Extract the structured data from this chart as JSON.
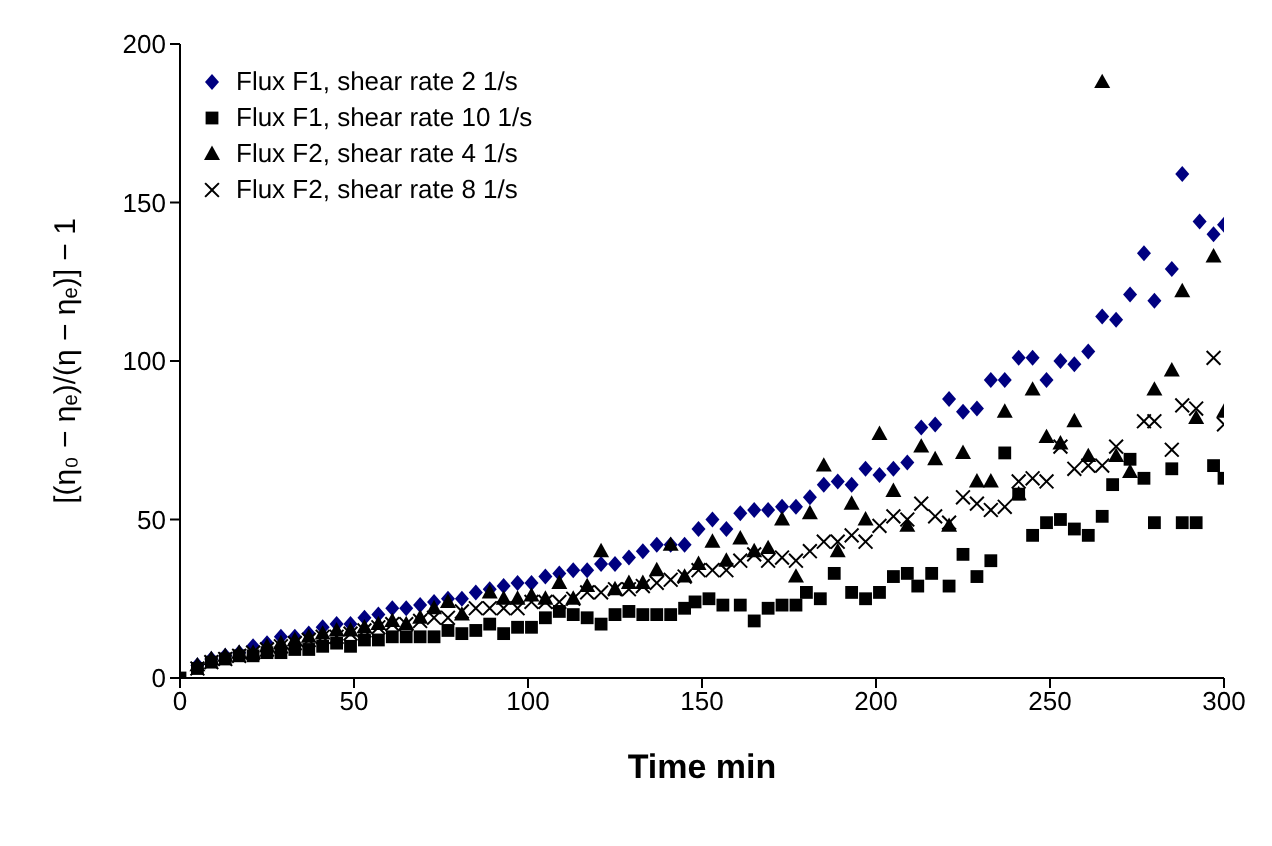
{
  "chart_data": {
    "type": "scatter",
    "xlabel": "Time min",
    "ylabel": "[(η₀ − ηₑ)/(η − ηₑ)] − 1",
    "xlim": [
      0,
      300
    ],
    "xticks": [
      0,
      50,
      100,
      150,
      200,
      250,
      300
    ],
    "ylim": [
      0,
      200
    ],
    "yticks": [
      0,
      50,
      100,
      150,
      200
    ],
    "legend": "top left",
    "grid": false,
    "series": [
      {
        "name": "Flux F1, shear rate 2 1/s",
        "color": "#000080",
        "marker": "diamond",
        "x": [
          5,
          9,
          13,
          17,
          21,
          25,
          29,
          33,
          37,
          41,
          45,
          49,
          53,
          57,
          61,
          65,
          69,
          73,
          77,
          81,
          85,
          89,
          93,
          97,
          101,
          105,
          109,
          113,
          117,
          121,
          125,
          129,
          133,
          137,
          141,
          145,
          149,
          153,
          157,
          161,
          165,
          169,
          173,
          177,
          181,
          185,
          189,
          193,
          197,
          201,
          205,
          209,
          213,
          217,
          221,
          225,
          229,
          233,
          237,
          241,
          245,
          249,
          253,
          257,
          261,
          265,
          269,
          273,
          277,
          280,
          285,
          288,
          293,
          297,
          300
        ],
        "values": [
          4,
          6,
          7,
          8,
          10,
          11,
          13,
          13,
          14,
          16,
          17,
          17,
          19,
          20,
          22,
          22,
          23,
          24,
          25,
          25,
          27,
          28,
          29,
          30,
          30,
          32,
          33,
          34,
          34,
          36,
          36,
          38,
          40,
          42,
          42,
          42,
          47,
          50,
          47,
          52,
          53,
          53,
          54,
          54,
          57,
          61,
          62,
          61,
          66,
          64,
          66,
          68,
          79,
          80,
          88,
          84,
          85,
          94,
          94,
          101,
          101,
          94,
          100,
          99,
          103,
          114,
          113,
          121,
          134,
          119,
          129,
          159,
          144,
          140,
          143
        ]
      },
      {
        "name": "Flux F1, shear rate 10 1/s",
        "color": "#000000",
        "marker": "square",
        "x": [
          0,
          5,
          9,
          13,
          17,
          21,
          25,
          29,
          33,
          37,
          41,
          45,
          49,
          53,
          57,
          61,
          65,
          69,
          73,
          77,
          81,
          85,
          89,
          93,
          97,
          101,
          105,
          109,
          113,
          117,
          121,
          125,
          129,
          133,
          137,
          141,
          145,
          148,
          152,
          156,
          161,
          165,
          169,
          173,
          177,
          180,
          184,
          188,
          193,
          197,
          201,
          205,
          209,
          212,
          216,
          221,
          225,
          229,
          233,
          237,
          241,
          245,
          249,
          253,
          257,
          261,
          265,
          268,
          273,
          277,
          280,
          285,
          288,
          292,
          297,
          300
        ],
        "values": [
          0,
          3,
          5,
          6,
          7,
          7,
          8,
          8,
          9,
          9,
          10,
          11,
          10,
          12,
          12,
          13,
          13,
          13,
          13,
          15,
          14,
          15,
          17,
          14,
          16,
          16,
          19,
          21,
          20,
          19,
          17,
          20,
          21,
          20,
          20,
          20,
          22,
          24,
          25,
          23,
          23,
          18,
          22,
          23,
          23,
          27,
          25,
          33,
          27,
          25,
          27,
          32,
          33,
          29,
          33,
          29,
          39,
          32,
          37,
          71,
          58,
          45,
          49,
          50,
          47,
          45,
          51,
          61,
          69,
          63,
          49,
          66,
          49,
          49,
          67,
          63
        ]
      },
      {
        "name": "Flux F2, shear rate 4 1/s",
        "color": "#000000",
        "marker": "triangle",
        "x": [
          5,
          9,
          13,
          17,
          21,
          25,
          29,
          33,
          37,
          41,
          45,
          49,
          53,
          57,
          61,
          65,
          69,
          73,
          77,
          81,
          89,
          93,
          97,
          101,
          105,
          109,
          113,
          117,
          121,
          125,
          129,
          133,
          137,
          141,
          145,
          149,
          153,
          157,
          161,
          165,
          169,
          173,
          177,
          181,
          185,
          189,
          193,
          197,
          201,
          205,
          209,
          213,
          217,
          221,
          225,
          229,
          233,
          237,
          241,
          245,
          249,
          253,
          257,
          261,
          265,
          269,
          273,
          280,
          285,
          288,
          292,
          297,
          300
        ],
        "values": [
          4,
          6,
          7,
          8,
          8,
          10,
          11,
          12,
          13,
          14,
          15,
          15,
          16,
          17,
          18,
          17,
          19,
          22,
          24,
          20,
          27,
          25,
          25,
          26,
          25,
          30,
          25,
          29,
          40,
          28,
          30,
          30,
          34,
          42,
          32,
          36,
          43,
          37,
          44,
          40,
          41,
          50,
          32,
          52,
          67,
          40,
          55,
          50,
          77,
          59,
          48,
          73,
          69,
          48,
          71,
          62,
          62,
          84,
          58,
          91,
          76,
          74,
          81,
          70,
          188,
          70,
          65,
          91,
          97,
          122,
          82,
          133,
          84
        ]
      },
      {
        "name": "Flux F2, shear rate 8 1/s",
        "color": "#000000",
        "marker": "cross",
        "x": [
          5,
          9,
          13,
          17,
          21,
          25,
          29,
          33,
          37,
          41,
          45,
          49,
          53,
          57,
          61,
          65,
          69,
          73,
          77,
          81,
          85,
          89,
          93,
          97,
          101,
          105,
          109,
          113,
          117,
          121,
          125,
          129,
          133,
          137,
          141,
          145,
          149,
          153,
          157,
          161,
          165,
          169,
          173,
          177,
          181,
          185,
          189,
          193,
          197,
          201,
          205,
          209,
          213,
          217,
          221,
          225,
          229,
          233,
          237,
          241,
          245,
          249,
          253,
          257,
          261,
          265,
          269,
          277,
          280,
          285,
          288,
          292,
          297,
          300
        ],
        "values": [
          3,
          5,
          6,
          7,
          8,
          9,
          10,
          11,
          12,
          13,
          13,
          14,
          15,
          16,
          17,
          17,
          18,
          19,
          19,
          21,
          22,
          22,
          22,
          22,
          24,
          24,
          24,
          25,
          27,
          27,
          28,
          28,
          29,
          30,
          31,
          32,
          34,
          34,
          34,
          37,
          39,
          37,
          38,
          37,
          40,
          43,
          43,
          45,
          43,
          48,
          51,
          50,
          55,
          51,
          49,
          57,
          55,
          53,
          54,
          62,
          63,
          62,
          73,
          66,
          67,
          67,
          73,
          81,
          81,
          72,
          86,
          85,
          101,
          80
        ]
      }
    ]
  }
}
